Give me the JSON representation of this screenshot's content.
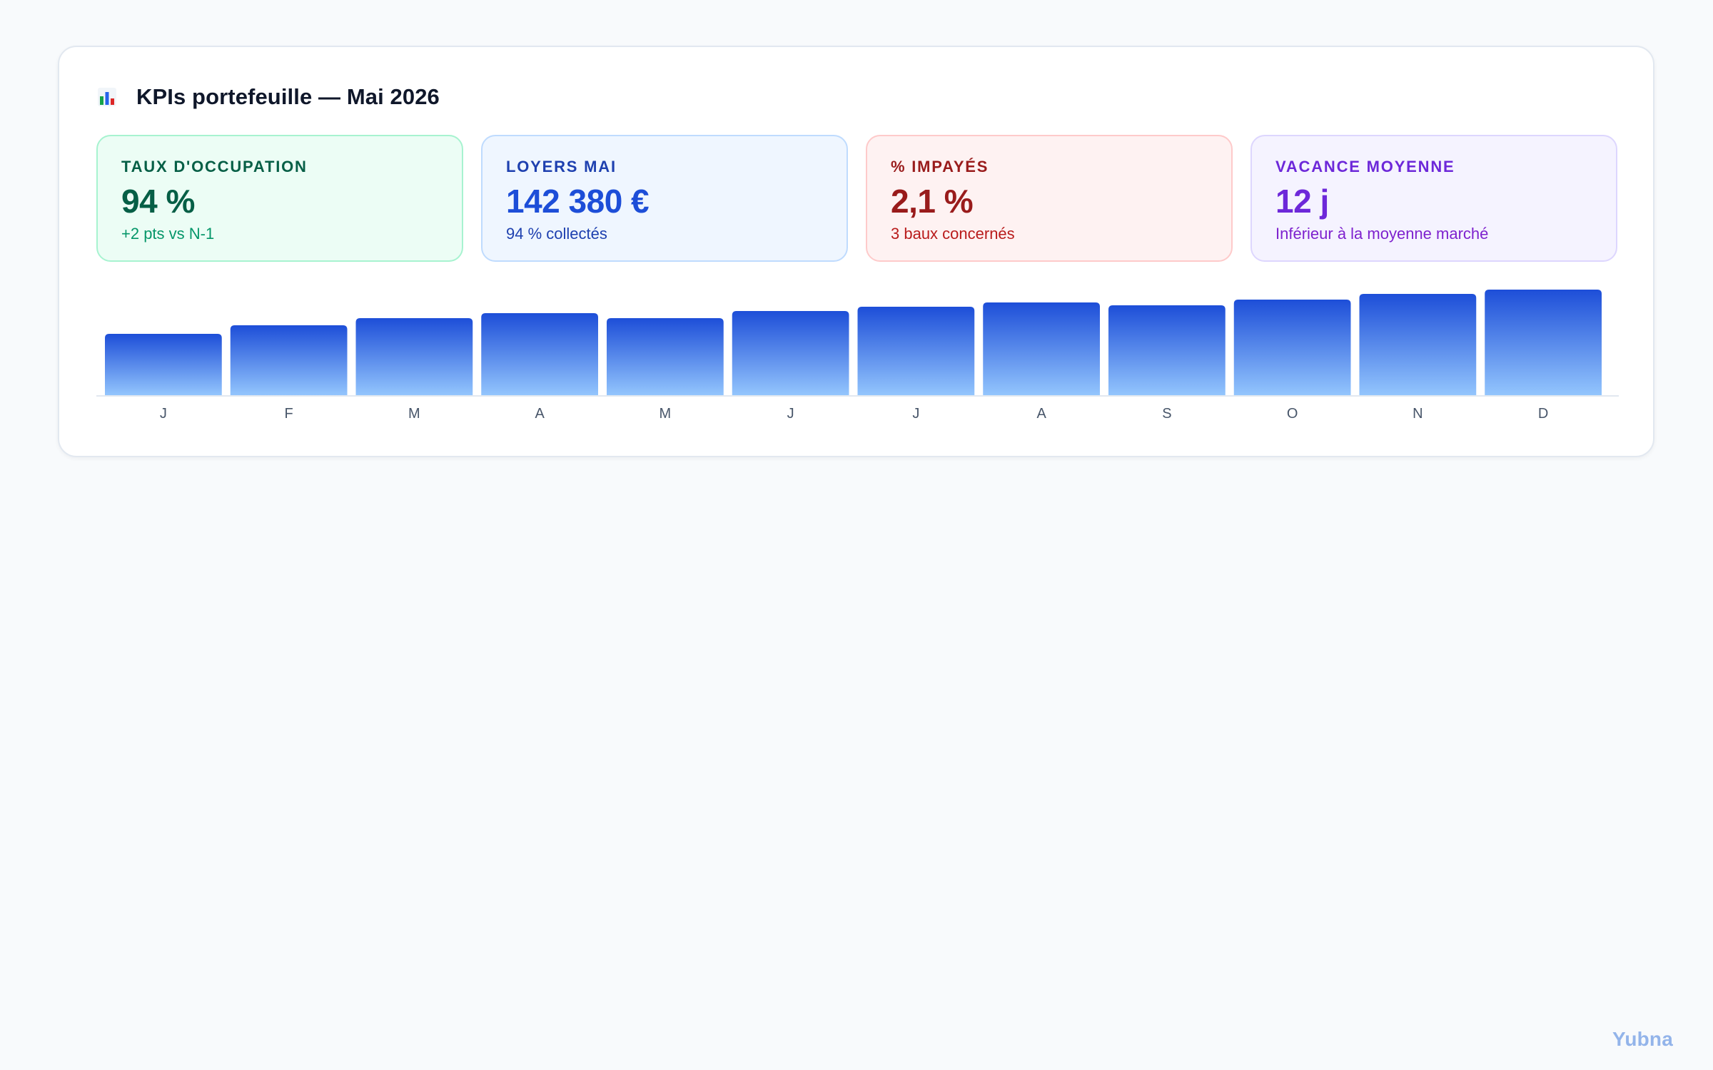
{
  "header": {
    "icon": "bar-chart-icon",
    "title": "KPIs portefeuille — Mai 2026"
  },
  "kpis": [
    {
      "label": "Taux d'occupation",
      "value": "94 %",
      "sub": "+2 pts vs N-1",
      "accent": "#065f46",
      "background": "#ecfdf5"
    },
    {
      "label": "Loyers mai",
      "value": "142 380 €",
      "sub": "94 % collectés",
      "accent": "#1d4ed8",
      "background": "#eff6ff"
    },
    {
      "label": "% impayés",
      "value": "2,1 %",
      "sub": "3 baux concernés",
      "accent": "#991b1b",
      "background": "#fef2f2"
    },
    {
      "label": "Vacance moyenne",
      "value": "12 j",
      "sub": "Inférieur à la moyenne marché",
      "accent": "#6d28d9",
      "background": "#f5f3ff"
    }
  ],
  "chart_data": {
    "type": "bar",
    "categories": [
      "J",
      "F",
      "M",
      "A",
      "M",
      "J",
      "J",
      "A",
      "S",
      "O",
      "N",
      "D"
    ],
    "values": [
      86,
      98,
      108,
      115,
      108,
      118,
      124,
      130,
      126,
      134,
      142,
      148
    ],
    "ylim": [
      0,
      148
    ],
    "grid": false,
    "legend": "none",
    "bar_color_top": "#1d4ed8",
    "bar_color_bottom": "#93c5fd"
  },
  "watermark": "Yubna"
}
